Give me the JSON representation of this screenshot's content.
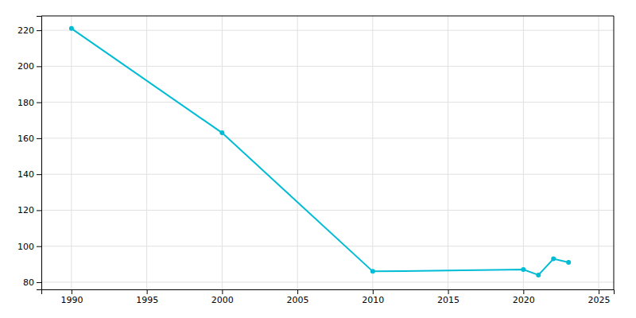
{
  "chart_data": {
    "type": "line",
    "x": [
      1990,
      2000,
      2010,
      2020,
      2021,
      2022,
      2023
    ],
    "values": [
      221,
      163,
      86,
      87,
      84,
      93,
      91
    ],
    "color": "#00BCD4",
    "marker": "circle",
    "xlim": [
      1988,
      2026
    ],
    "ylim": [
      76,
      228
    ],
    "xticks": [
      1990,
      1995,
      2000,
      2005,
      2010,
      2015,
      2020,
      2025
    ],
    "yticks": [
      80,
      100,
      120,
      140,
      160,
      180,
      200,
      220
    ],
    "grid": true
  }
}
